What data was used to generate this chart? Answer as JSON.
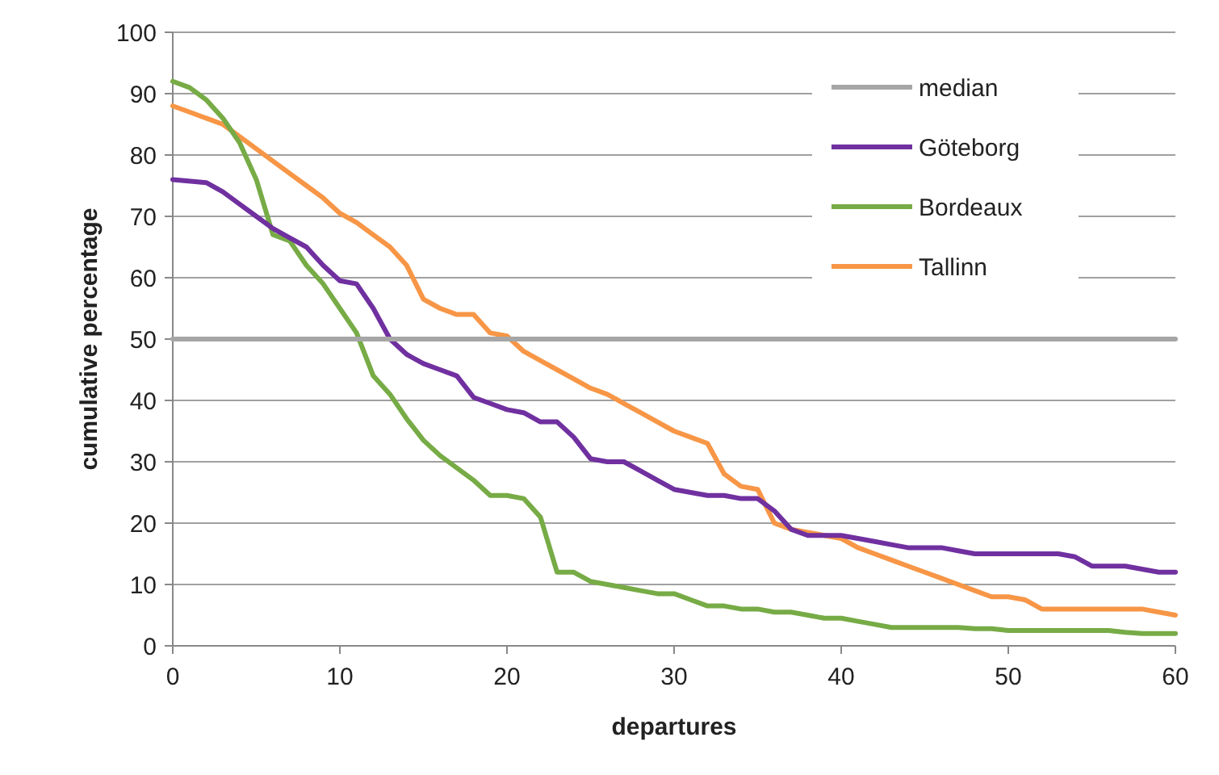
{
  "chart_data": {
    "type": "line",
    "xlabel": "departures",
    "ylabel": "cumulative percentage",
    "xlim": [
      0,
      60
    ],
    "ylim": [
      0,
      100
    ],
    "xticks": [
      0,
      10,
      20,
      30,
      40,
      50,
      60
    ],
    "yticks": [
      0,
      10,
      20,
      30,
      40,
      50,
      60,
      70,
      80,
      90,
      100
    ],
    "grid": "y",
    "legend": "top right",
    "line_style": "solid",
    "marker": "none",
    "series": [
      {
        "name": "median",
        "color": "#a6a6a6",
        "x": [
          0,
          10,
          20,
          30,
          40,
          50,
          60
        ],
        "values": [
          50,
          50,
          50,
          50,
          50,
          50,
          50
        ]
      },
      {
        "name": "Göteborg",
        "color": "#7030a0",
        "x": [
          0,
          2,
          3,
          4,
          5,
          6,
          7,
          8,
          9,
          10,
          11,
          12,
          13,
          14,
          15,
          16,
          17,
          18,
          19,
          20,
          21,
          22,
          23,
          24,
          25,
          26,
          27,
          28,
          29,
          30,
          31,
          32,
          33,
          34,
          35,
          36,
          37,
          38,
          39,
          40,
          41,
          42,
          43,
          44,
          45,
          46,
          47,
          48,
          49,
          50,
          51,
          52,
          53,
          54,
          55,
          56,
          57,
          58,
          59,
          60
        ],
        "values": [
          76,
          75.5,
          74,
          72,
          70,
          68,
          66.5,
          65,
          62,
          59.5,
          59,
          55,
          50,
          47.5,
          46,
          45,
          44,
          40.5,
          39.5,
          38.5,
          38,
          36.5,
          36.5,
          34,
          30.5,
          30,
          30,
          28.5,
          27,
          25.5,
          25,
          24.5,
          24.5,
          24,
          24,
          22,
          19,
          18,
          18,
          18,
          17.5,
          17,
          16.5,
          16,
          16,
          16,
          15.5,
          15,
          15,
          15,
          15,
          15,
          15,
          14.5,
          13,
          13,
          13,
          12.5,
          12,
          12
        ]
      },
      {
        "name": "Bordeaux",
        "color": "#77ab46",
        "x": [
          0,
          1,
          2,
          3,
          4,
          5,
          6,
          7,
          8,
          9,
          10,
          11,
          12,
          13,
          14,
          15,
          16,
          17,
          18,
          19,
          20,
          21,
          22,
          23,
          24,
          25,
          26,
          27,
          28,
          29,
          30,
          31,
          32,
          33,
          34,
          35,
          36,
          37,
          38,
          39,
          40,
          41,
          42,
          43,
          44,
          45,
          46,
          47,
          48,
          49,
          50,
          52,
          54,
          56,
          57,
          58,
          60
        ],
        "values": [
          92,
          91,
          89,
          86,
          82,
          76,
          67,
          66,
          62,
          59,
          55,
          51,
          44,
          41,
          37,
          33.5,
          31,
          29,
          27,
          24.5,
          24.5,
          24,
          21,
          12,
          12,
          10.5,
          10,
          9.5,
          9,
          8.5,
          8.5,
          7.5,
          6.5,
          6.5,
          6,
          6,
          5.5,
          5.5,
          5,
          4.5,
          4.5,
          4,
          3.5,
          3,
          3,
          3,
          3,
          3,
          2.8,
          2.8,
          2.5,
          2.5,
          2.5,
          2.5,
          2.2,
          2,
          2
        ]
      },
      {
        "name": "Tallinn",
        "color": "#f79646",
        "x": [
          0,
          1,
          2,
          3,
          4,
          5,
          6,
          7,
          8,
          9,
          10,
          11,
          12,
          13,
          14,
          15,
          16,
          17,
          18,
          19,
          20,
          21,
          22,
          23,
          24,
          25,
          26,
          27,
          28,
          29,
          30,
          31,
          32,
          33,
          34,
          35,
          36,
          37,
          38,
          39,
          40,
          41,
          42,
          43,
          44,
          45,
          46,
          47,
          48,
          49,
          50,
          51,
          52,
          53,
          54,
          55,
          56,
          57,
          58,
          59,
          60
        ],
        "values": [
          88,
          87,
          86,
          85,
          83,
          81,
          79,
          77,
          75,
          73,
          70.5,
          69,
          67,
          65,
          62,
          56.5,
          55,
          54,
          54,
          51,
          50.5,
          48,
          46.5,
          45,
          43.5,
          42,
          41,
          39.5,
          38,
          36.5,
          35,
          34,
          33,
          28,
          26,
          25.5,
          20,
          19,
          18.5,
          18,
          17.5,
          16,
          15,
          14,
          13,
          12,
          11,
          10,
          9,
          8,
          8,
          7.5,
          6,
          6,
          6,
          6,
          6,
          6,
          6,
          5.5,
          5
        ]
      }
    ]
  }
}
